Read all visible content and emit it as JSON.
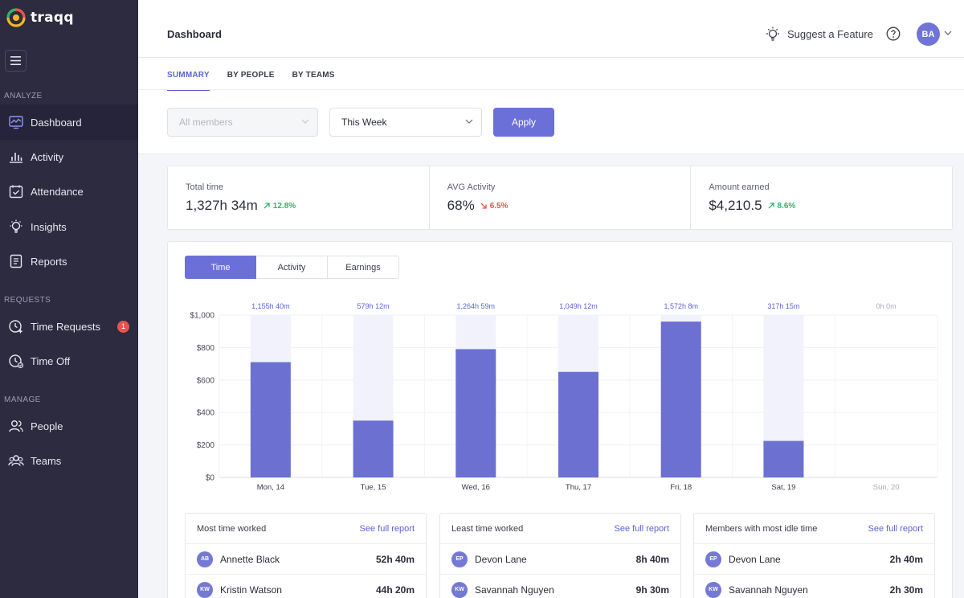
{
  "app": {
    "name": "traqq"
  },
  "sidebar": {
    "sections": {
      "analyze": "ANALYZE",
      "requests": "REQUESTS",
      "manage": "MANAGE"
    },
    "items": [
      {
        "label": "Dashboard",
        "icon": "dashboard-icon"
      },
      {
        "label": "Activity",
        "icon": "bar-chart-icon"
      },
      {
        "label": "Attendance",
        "icon": "calendar-check-icon"
      },
      {
        "label": "Insights",
        "icon": "lightbulb-icon"
      },
      {
        "label": "Reports",
        "icon": "report-icon"
      },
      {
        "label": "Time Requests",
        "icon": "clock-plus-icon",
        "badge": "1"
      },
      {
        "label": "Time Off",
        "icon": "clock-check-icon"
      },
      {
        "label": "People",
        "icon": "people-icon"
      },
      {
        "label": "Teams",
        "icon": "teams-icon"
      }
    ]
  },
  "header": {
    "title": "Dashboard",
    "suggest_label": "Suggest a Feature",
    "user_initials": "BA"
  },
  "tabs": [
    "SUMMARY",
    "BY PEOPLE",
    "BY TEAMS"
  ],
  "filters": {
    "members_placeholder": "All members",
    "period": "This Week",
    "apply_label": "Apply"
  },
  "stats": [
    {
      "label": "Total time",
      "value": "1,327h 34m",
      "delta": "12.8%",
      "direction": "up"
    },
    {
      "label": "AVG Activity",
      "value": "68%",
      "delta": "6.5%",
      "direction": "down"
    },
    {
      "label": "Amount earned",
      "value": "$4,210.5",
      "delta": "8.6%",
      "direction": "up"
    }
  ],
  "chart_toggle": [
    "Time",
    "Activity",
    "Earnings"
  ],
  "chart_data": {
    "type": "bar",
    "categories": [
      "Mon, 14",
      "Tue, 15",
      "Wed, 16",
      "Thu, 17",
      "Fri, 18",
      "Sat, 19",
      "Sun, 20"
    ],
    "top_labels": [
      "1,155h 40m",
      "579h 12m",
      "1,264h 59m",
      "1,049h 12m",
      "1,572h 8m",
      "317h 15m",
      "0h 0m"
    ],
    "values": [
      710,
      350,
      790,
      650,
      960,
      225,
      0
    ],
    "background_values": [
      1000,
      1000,
      1000,
      1000,
      1000,
      1000,
      0
    ],
    "yticks": [
      "$1,000",
      "$800",
      "$600",
      "$400",
      "$200",
      "$0"
    ],
    "ylim": [
      0,
      1000
    ],
    "colors": {
      "bar": "#6b70d1",
      "bar_bg": "#f1f2fc"
    }
  },
  "tables": [
    {
      "title": "Most time worked",
      "link": "See full report",
      "rows": [
        {
          "initials": "AB",
          "name": "Annette Black",
          "time": "52h 40m"
        },
        {
          "initials": "KW",
          "name": "Kristin Watson",
          "time": "44h 20m"
        }
      ]
    },
    {
      "title": "Least time worked",
      "link": "See full report",
      "rows": [
        {
          "initials": "EP",
          "name": "Devon Lane",
          "time": "8h 40m"
        },
        {
          "initials": "KW",
          "name": "Savannah Nguyen",
          "time": "9h 30m"
        }
      ]
    },
    {
      "title": "Members with most idle time",
      "link": "See full report",
      "rows": [
        {
          "initials": "EP",
          "name": "Devon Lane",
          "time": "2h 40m"
        },
        {
          "initials": "KW",
          "name": "Savannah Nguyen",
          "time": "2h 30m"
        }
      ]
    }
  ],
  "colors": {
    "accent": "#6b70d9",
    "sidebar_bg": "#2c2b3f",
    "up": "#2fb36a",
    "down": "#e9534f"
  }
}
